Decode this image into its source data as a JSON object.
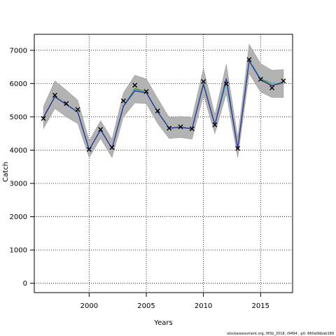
{
  "chart_data": {
    "type": "line",
    "title": "",
    "xlabel": "Years",
    "ylabel": "Catch",
    "xlim": [
      1995.2,
      2017.8
    ],
    "ylim": [
      -280,
      7480
    ],
    "x_ticks": [
      2000,
      2005,
      2010,
      2015
    ],
    "y_ticks": [
      0,
      1000,
      2000,
      3000,
      4000,
      5000,
      6000,
      7000
    ],
    "grid": true,
    "x": [
      1996,
      1997,
      1998,
      1999,
      2000,
      2001,
      2002,
      2003,
      2004,
      2005,
      2006,
      2007,
      2008,
      2009,
      2010,
      2011,
      2012,
      2013,
      2014,
      2015,
      2016,
      2017
    ],
    "band": {
      "lower": [
        4650,
        5250,
        5000,
        4800,
        3780,
        4350,
        3780,
        5000,
        5420,
        5400,
        4800,
        4350,
        4380,
        4330,
        5650,
        4500,
        5700,
        3780,
        6300,
        5750,
        5580,
        5580
      ],
      "upper": [
        5300,
        6080,
        5800,
        5500,
        4280,
        4880,
        4330,
        5720,
        6250,
        6140,
        5550,
        4980,
        5010,
        4970,
        6450,
        5060,
        6580,
        4380,
        7180,
        6600,
        6400,
        6420
      ]
    },
    "series": [
      {
        "values": [
          5000,
          5620,
          5380,
          5150,
          4020,
          4620,
          4050,
          5330,
          5850,
          5750,
          5150,
          4660,
          4680,
          4640,
          6020,
          4760,
          6080,
          4050,
          6680,
          6150,
          5950,
          6000
        ]
      },
      {
        "values": [
          4990,
          5610,
          5380,
          5150,
          4030,
          4600,
          4060,
          5340,
          5820,
          5740,
          5160,
          4670,
          4690,
          4650,
          6000,
          4780,
          6050,
          4060,
          6700,
          6150,
          6010,
          5990
        ]
      },
      {
        "values": [
          4980,
          5600,
          5370,
          5140,
          4010,
          4610,
          4050,
          5320,
          5780,
          5720,
          5140,
          4660,
          4690,
          4640,
          5970,
          4760,
          6150,
          4050,
          6680,
          6110,
          5930,
          6050
        ]
      }
    ],
    "observed": [
      4950,
      5650,
      5400,
      5220,
      4020,
      4620,
      4080,
      5480,
      5950,
      5760,
      5180,
      4660,
      4700,
      4640,
      6060,
      4760,
      5990,
      4050,
      6720,
      6130,
      5870,
      6080
    ]
  },
  "colors": {
    "band": "#b3b3b3",
    "band_edge": "#9a9a9a",
    "series": [
      "#808000",
      "#33b0c0",
      "#3030a0"
    ],
    "observed_marker": "#000000"
  },
  "footer": "stockassessment.org, fit5b_2018, r9494 , git: 660a0bbab189"
}
